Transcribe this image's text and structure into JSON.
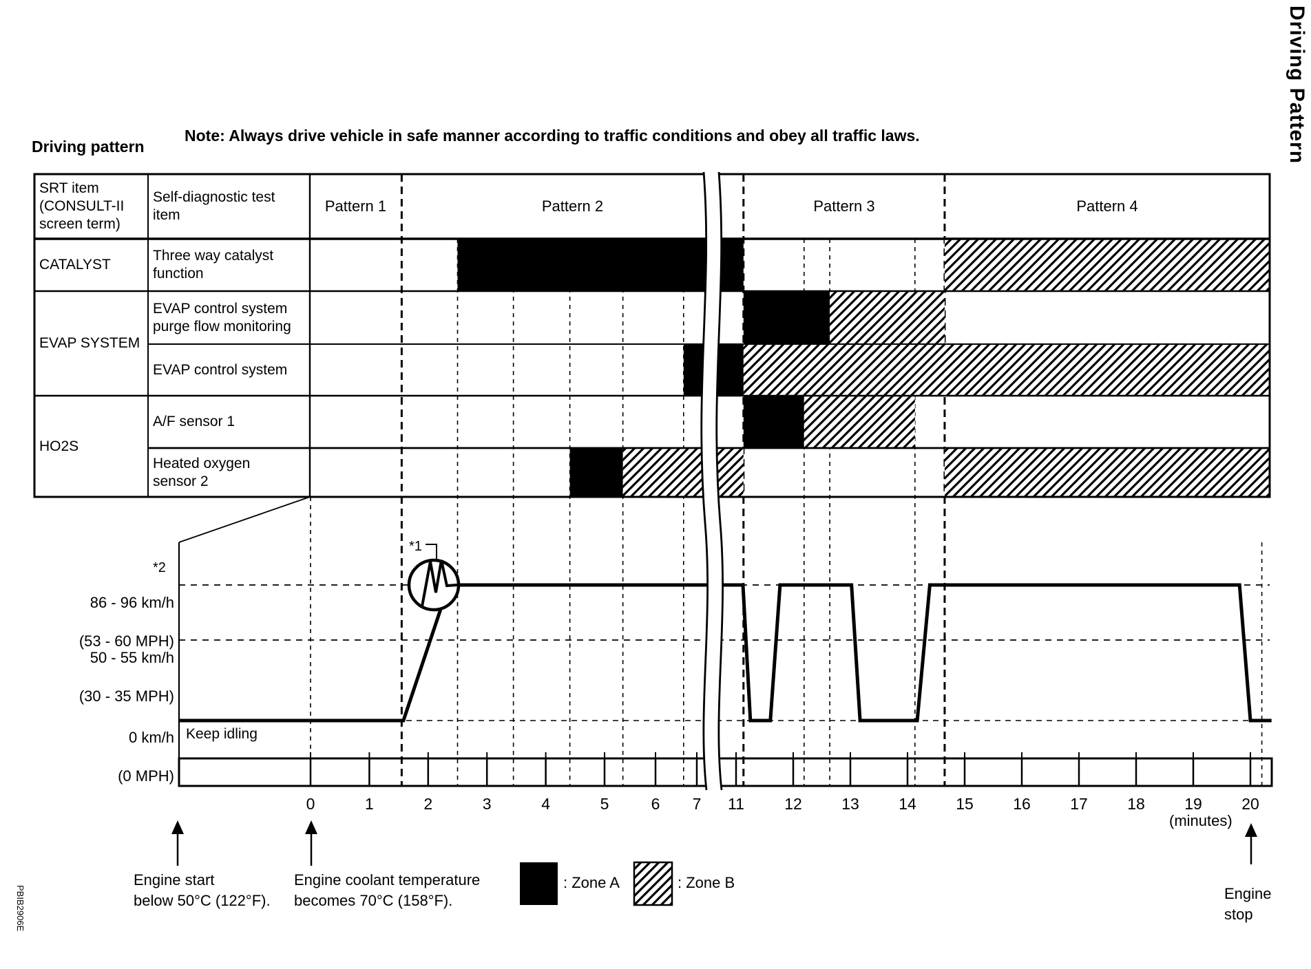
{
  "page": {
    "note": "Note: Always drive vehicle in safe manner according to traffic conditions and obey all traffic laws.",
    "heading": "Driving pattern",
    "side_label": "Driving Pattern",
    "doc_code": "PBIB2906E"
  },
  "table": {
    "col1_header": "SRT item\n(CONSULT-II\nscreen term)",
    "col2_header": "Self-diagnostic test\nitem",
    "patterns": [
      "Pattern 1",
      "Pattern 2",
      "Pattern 3",
      "Pattern 4"
    ],
    "groups": [
      {
        "name": "CATALYST",
        "rows": [
          {
            "label": "Three way catalyst\nfunction"
          }
        ]
      },
      {
        "name": "EVAP SYSTEM",
        "rows": [
          {
            "label": "EVAP control system\npurge flow monitoring"
          },
          {
            "label": "EVAP control system"
          }
        ]
      },
      {
        "name": "HO2S",
        "rows": [
          {
            "label": "A/F sensor 1"
          },
          {
            "label": "Heated oxygen\nsensor 2"
          }
        ]
      }
    ]
  },
  "graph": {
    "y_labels": [
      {
        "speed": "86 - 96 km/h",
        "mph": "(53 - 60 MPH)",
        "footnote": "*2"
      },
      {
        "speed": "50 - 55 km/h",
        "mph": "(30 - 35 MPH)"
      },
      {
        "speed": "0 km/h",
        "mph": "(0 MPH)"
      }
    ],
    "keep_idling": "Keep idling",
    "interrupt_marker": "*1",
    "minutes_unit": "(minutes)"
  },
  "annotations": {
    "engine_start": "Engine start\nbelow 50°C (122°F).",
    "coolant": "Engine coolant temperature\nbecomes 70°C (158°F).",
    "engine_stop": "Engine\nstop",
    "legend": [
      {
        "zone": "A",
        "label": ": Zone A",
        "style": "solid-black"
      },
      {
        "zone": "B",
        "label": ": Zone B",
        "style": "hatched"
      }
    ]
  },
  "chart_data": {
    "type": "gantt+line",
    "title": "Driving pattern",
    "time_axis": {
      "unit": "minutes",
      "break_between": [
        7,
        11
      ],
      "ticks": [
        {
          "t": 0,
          "label": "0"
        },
        {
          "t": 1,
          "label": "1"
        },
        {
          "t": 2,
          "label": "2"
        },
        {
          "t": 3,
          "label": "3"
        },
        {
          "t": 4,
          "label": "4"
        },
        {
          "t": 5,
          "label": "5"
        },
        {
          "t": 6,
          "label": "6"
        },
        {
          "t": 7,
          "label": "7"
        },
        {
          "t": 11,
          "label": "11"
        },
        {
          "t": 12,
          "label": "12"
        },
        {
          "t": 13,
          "label": "13"
        },
        {
          "t": 14,
          "label": "14"
        },
        {
          "t": 15,
          "label": "15"
        },
        {
          "t": 16,
          "label": "16"
        },
        {
          "t": 17,
          "label": "17"
        },
        {
          "t": 18,
          "label": "18"
        },
        {
          "t": 19,
          "label": "19"
        },
        {
          "t": 20,
          "label": "20"
        }
      ]
    },
    "patterns": [
      {
        "label": "Pattern 1",
        "t": [
          0,
          1.55
        ]
      },
      {
        "label": "Pattern 2",
        "t": [
          1.55,
          11.13
        ]
      },
      {
        "label": "Pattern 3",
        "t": [
          11.13,
          14.65
        ]
      },
      {
        "label": "Pattern 4",
        "t": [
          14.65,
          20.4
        ]
      }
    ],
    "monitor_rows": [
      {
        "srt_item": "CATALYST",
        "test_item": "Three way catalyst function",
        "zones": [
          {
            "zone": "A",
            "t": [
              2.5,
              11.13
            ]
          },
          {
            "zone": "B",
            "t": [
              14.65,
              20.4
            ]
          }
        ]
      },
      {
        "srt_item": "EVAP SYSTEM",
        "test_item": "EVAP control system purge flow monitoring",
        "zones": [
          {
            "zone": "A",
            "t": [
              11.13,
              12.64
            ]
          },
          {
            "zone": "B",
            "t": [
              12.64,
              14.65
            ]
          }
        ]
      },
      {
        "srt_item": "EVAP SYSTEM",
        "test_item": "EVAP control system",
        "zones": [
          {
            "zone": "A",
            "t": [
              6.68,
              11.13
            ]
          },
          {
            "zone": "B",
            "t": [
              11.13,
              20.4
            ]
          }
        ]
      },
      {
        "srt_item": "HO2S",
        "test_item": "A/F sensor 1",
        "zones": [
          {
            "zone": "A",
            "t": [
              11.13,
              12.19
            ]
          },
          {
            "zone": "B",
            "t": [
              12.19,
              14.13
            ]
          }
        ]
      },
      {
        "srt_item": "HO2S",
        "test_item": "Heated oxygen sensor 2",
        "zones": [
          {
            "zone": "A",
            "t": [
              4.41,
              5.36
            ]
          },
          {
            "zone": "B",
            "t": [
              5.36,
              11.13
            ]
          },
          {
            "zone": "B",
            "t": [
              14.65,
              20.4
            ]
          }
        ]
      }
    ],
    "speed_profile": {
      "levels": {
        "0": "0 km/h (0 MPH)",
        "1": "86 - 96 km/h (53 - 60 MPH)"
      },
      "points": [
        [
          -2.23,
          0
        ],
        [
          1.58,
          0
        ],
        [
          2.35,
          1
        ],
        [
          11.12,
          1
        ],
        [
          11.25,
          0
        ],
        [
          11.6,
          0
        ],
        [
          11.77,
          1
        ],
        [
          13.02,
          1
        ],
        [
          13.17,
          0
        ],
        [
          14.17,
          0
        ],
        [
          14.39,
          1
        ],
        [
          19.81,
          1
        ],
        [
          20.0,
          0
        ],
        [
          20.37,
          0
        ]
      ],
      "interrupt_symbol_t": 2.1,
      "footnote_high_band": "*2",
      "footnote_interrupt": "*1"
    },
    "gridlines": {
      "pattern_boundaries_t": [
        1.55,
        11.13,
        14.65
      ],
      "sub_boundaries_t": [
        2.5,
        3.45,
        4.41,
        5.36,
        6.68,
        12.19,
        12.64,
        14.13
      ],
      "extra": [
        {
          "t": 0,
          "from": "table_bottom"
        },
        {
          "t": 20.2,
          "from": "graph_top"
        }
      ]
    },
    "legend_position": "bottom",
    "zone_colors": {
      "A": "#000000",
      "B": "hatch"
    }
  }
}
